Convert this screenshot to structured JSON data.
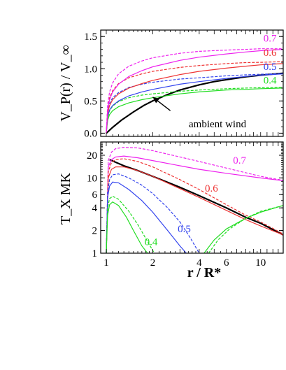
{
  "chart_data": [
    {
      "type": "line",
      "ylabel": "V_P(r) / V_∞",
      "ylim": [
        -0.05,
        1.6
      ],
      "xscale": "log",
      "xlim": [
        0.92,
        14
      ],
      "yticks": [
        0.0,
        0.5,
        1.0,
        1.5
      ],
      "ytick_labels": [
        "0.0",
        "0.5",
        "1.0",
        "1.5"
      ],
      "annotation": "ambient wind",
      "series": [
        {
          "name": "ambient wind",
          "color": "#000000",
          "style": "solid",
          "x": [
            1.0,
            1.1,
            1.25,
            1.5,
            1.75,
            2,
            2.5,
            3,
            4,
            5,
            6,
            8,
            10,
            14
          ],
          "y": [
            0.0,
            0.09,
            0.2,
            0.33,
            0.43,
            0.5,
            0.6,
            0.67,
            0.75,
            0.8,
            0.83,
            0.875,
            0.9,
            0.93
          ]
        },
        {
          "name": "0.4",
          "color": "#22dd22",
          "style": "solid",
          "x": [
            1.0,
            1.02,
            1.05,
            1.1,
            1.2,
            1.4,
            1.7,
            2,
            3,
            4,
            6,
            8,
            10,
            14
          ],
          "y": [
            0.0,
            0.2,
            0.29,
            0.35,
            0.41,
            0.47,
            0.52,
            0.55,
            0.61,
            0.64,
            0.67,
            0.68,
            0.69,
            0.7
          ]
        },
        {
          "name": "0.4",
          "color": "#22dd22",
          "style": "dashed",
          "x": [
            1.0,
            1.02,
            1.05,
            1.1,
            1.2,
            1.4,
            1.7,
            2,
            3,
            4,
            6,
            8,
            10,
            14
          ],
          "y": [
            0.0,
            0.24,
            0.35,
            0.42,
            0.49,
            0.55,
            0.59,
            0.61,
            0.65,
            0.67,
            0.69,
            0.7,
            0.705,
            0.71
          ]
        },
        {
          "name": "0.5",
          "color": "#3344ee",
          "style": "solid",
          "x": [
            1.0,
            1.02,
            1.05,
            1.1,
            1.2,
            1.4,
            1.7,
            2,
            3,
            4,
            6,
            8,
            10,
            14
          ],
          "y": [
            0.0,
            0.26,
            0.36,
            0.43,
            0.5,
            0.58,
            0.64,
            0.68,
            0.76,
            0.8,
            0.85,
            0.88,
            0.9,
            0.92
          ]
        },
        {
          "name": "0.5",
          "color": "#3344ee",
          "style": "dashed",
          "x": [
            1.0,
            1.02,
            1.05,
            1.1,
            1.2,
            1.4,
            1.7,
            2,
            3,
            4,
            6,
            8,
            10,
            14
          ],
          "y": [
            0.0,
            0.32,
            0.46,
            0.55,
            0.63,
            0.71,
            0.76,
            0.79,
            0.84,
            0.86,
            0.89,
            0.905,
            0.915,
            0.925
          ]
        },
        {
          "name": "0.6",
          "color": "#ee3333",
          "style": "solid",
          "x": [
            1.0,
            1.02,
            1.05,
            1.1,
            1.2,
            1.4,
            1.7,
            2,
            3,
            4,
            6,
            8,
            10,
            14
          ],
          "y": [
            0.0,
            0.3,
            0.43,
            0.52,
            0.61,
            0.7,
            0.77,
            0.82,
            0.91,
            0.96,
            1.01,
            1.04,
            1.06,
            1.08
          ]
        },
        {
          "name": "0.6",
          "color": "#ee3333",
          "style": "dashed",
          "x": [
            1.0,
            1.02,
            1.05,
            1.1,
            1.2,
            1.4,
            1.7,
            2,
            3,
            4,
            6,
            8,
            10,
            14
          ],
          "y": [
            0.0,
            0.38,
            0.55,
            0.66,
            0.77,
            0.86,
            0.92,
            0.96,
            1.02,
            1.05,
            1.08,
            1.095,
            1.1,
            1.11
          ]
        },
        {
          "name": "0.7",
          "color": "#ee22ee",
          "style": "solid",
          "x": [
            1.0,
            1.02,
            1.05,
            1.1,
            1.2,
            1.4,
            1.7,
            2,
            3,
            4,
            6,
            8,
            10,
            14
          ],
          "y": [
            0.0,
            0.36,
            0.52,
            0.64,
            0.76,
            0.88,
            0.97,
            1.03,
            1.13,
            1.18,
            1.23,
            1.26,
            1.28,
            1.3
          ]
        },
        {
          "name": "0.7",
          "color": "#ee22ee",
          "style": "dashed",
          "x": [
            1.0,
            1.02,
            1.05,
            1.1,
            1.2,
            1.4,
            1.7,
            2,
            3,
            4,
            6,
            8,
            10,
            14
          ],
          "y": [
            0.0,
            0.44,
            0.64,
            0.78,
            0.92,
            1.04,
            1.12,
            1.17,
            1.24,
            1.27,
            1.29,
            1.3,
            1.31,
            1.31
          ]
        }
      ],
      "series_labels": [
        {
          "text": "0.7",
          "color": "#ee22ee",
          "x": 11.5,
          "y": 1.42
        },
        {
          "text": "0.6",
          "color": "#ee3333",
          "x": 11.5,
          "y": 1.2
        },
        {
          "text": "0.5",
          "color": "#3344ee",
          "x": 11.5,
          "y": 0.98
        },
        {
          "text": "0.4",
          "color": "#22dd22",
          "x": 11.5,
          "y": 0.77
        }
      ],
      "arrow": {
        "from": {
          "x": 2.6,
          "y": 0.35
        },
        "to": {
          "x": 2.0,
          "y": 0.56
        }
      }
    },
    {
      "type": "line",
      "xlabel": "r / R*",
      "ylabel": "T_X  MK",
      "yscale": "log",
      "xscale": "log",
      "xlim": [
        0.92,
        14
      ],
      "ylim": [
        1,
        30
      ],
      "xticks": [
        1,
        2,
        4,
        6,
        10
      ],
      "xtick_labels": [
        "1",
        "2",
        "4",
        "6",
        "10"
      ],
      "yticks": [
        1,
        2,
        4,
        6,
        10,
        20
      ],
      "ytick_labels": [
        "1",
        "2",
        "4",
        "6",
        "10",
        "20"
      ],
      "series": [
        {
          "name": "ambient wind",
          "color": "#000000",
          "style": "solid",
          "x": [
            1.05,
            1.3,
            1.6,
            2,
            3,
            4,
            6,
            8,
            10,
            14
          ],
          "y": [
            17.5,
            14.5,
            12.5,
            10.5,
            7.5,
            5.8,
            4.0,
            3.0,
            2.5,
            1.75
          ]
        },
        {
          "name": "0.7",
          "color": "#ee22ee",
          "style": "solid",
          "x": [
            1.0,
            1.03,
            1.08,
            1.15,
            1.3,
            1.6,
            2,
            3,
            4,
            6,
            10,
            14
          ],
          "y": [
            1.0,
            14,
            17.5,
            19,
            19.5,
            18.5,
            17,
            14.5,
            13,
            11.5,
            10,
            9.2
          ]
        },
        {
          "name": "0.7",
          "color": "#ee22ee",
          "style": "dashed",
          "x": [
            1.0,
            1.03,
            1.08,
            1.15,
            1.3,
            1.6,
            2,
            3,
            4,
            6,
            10,
            14
          ],
          "y": [
            1.0,
            17,
            22,
            24.5,
            25.5,
            25,
            23,
            19,
            16.5,
            13.5,
            10.5,
            9.3
          ]
        },
        {
          "name": "0.6",
          "color": "#ee3333",
          "style": "solid",
          "x": [
            1.0,
            1.03,
            1.08,
            1.15,
            1.3,
            1.6,
            2,
            3,
            4,
            6,
            8,
            10,
            14
          ],
          "y": [
            1.0,
            10,
            13,
            14,
            14,
            12.5,
            10.5,
            7.2,
            5.5,
            3.7,
            2.8,
            2.3,
            1.75
          ]
        },
        {
          "name": "0.6",
          "color": "#ee3333",
          "style": "dashed",
          "x": [
            1.0,
            1.03,
            1.08,
            1.15,
            1.3,
            1.6,
            2,
            3,
            4,
            6,
            8,
            10,
            14
          ],
          "y": [
            1.0,
            12,
            16,
            17.5,
            18,
            16.5,
            14,
            9.5,
            7.0,
            4.4,
            3.2,
            2.6,
            1.8
          ]
        },
        {
          "name": "0.5",
          "color": "#3344ee",
          "style": "solid",
          "x": [
            1.0,
            1.02,
            1.05,
            1.1,
            1.2,
            1.4,
            1.7,
            2,
            2.5,
            3,
            3.3
          ],
          "y": [
            1.0,
            5.5,
            7.8,
            8.8,
            8.6,
            7.0,
            5.0,
            3.5,
            2.0,
            1.25,
            1.0
          ]
        },
        {
          "name": "0.5",
          "color": "#3344ee",
          "style": "dashed",
          "x": [
            1.0,
            1.02,
            1.05,
            1.1,
            1.2,
            1.4,
            1.7,
            2,
            2.5,
            3,
            3.5,
            4.0
          ],
          "y": [
            1.0,
            6.5,
            9.5,
            11,
            11.3,
            10,
            8,
            6.2,
            4.0,
            2.6,
            1.6,
            1.0
          ]
        },
        {
          "name": "0.4",
          "color": "#22dd22",
          "style": "solid",
          "x": [
            1.0,
            1.02,
            1.05,
            1.1,
            1.2,
            1.35,
            1.5,
            1.7,
            1.85
          ],
          "y": [
            1.0,
            3.2,
            4.4,
            4.8,
            4.3,
            3.0,
            2.0,
            1.25,
            1.0
          ]
        },
        {
          "name": "0.4",
          "color": "#22dd22",
          "style": "dashed",
          "x": [
            1.0,
            1.02,
            1.05,
            1.1,
            1.2,
            1.4,
            1.6,
            1.9,
            2.05
          ],
          "y": [
            1.0,
            4.0,
            5.3,
            5.7,
            5.2,
            3.6,
            2.4,
            1.3,
            1.0
          ]
        },
        {
          "name": "0.4",
          "color": "#22dd22",
          "style": "solid",
          "x": [
            4.3,
            5,
            6,
            8,
            10,
            14
          ],
          "y": [
            1.0,
            1.5,
            2.1,
            2.9,
            3.5,
            4.3
          ]
        },
        {
          "name": "0.4",
          "color": "#22dd22",
          "style": "dashed",
          "x": [
            4.6,
            5.3,
            6.3,
            8,
            10,
            14
          ],
          "y": [
            1.0,
            1.5,
            2.1,
            2.9,
            3.6,
            4.3
          ]
        }
      ],
      "series_labels": [
        {
          "text": "0.7",
          "color": "#ee22ee",
          "x": 7.3,
          "y": 15.5
        },
        {
          "text": "0.6",
          "color": "#ee3333",
          "x": 4.8,
          "y": 6.6
        },
        {
          "text": "0.5",
          "color": "#3344ee",
          "x": 3.2,
          "y": 1.9
        },
        {
          "text": "0.4",
          "color": "#22dd22",
          "x": 1.95,
          "y": 1.28
        }
      ]
    }
  ]
}
